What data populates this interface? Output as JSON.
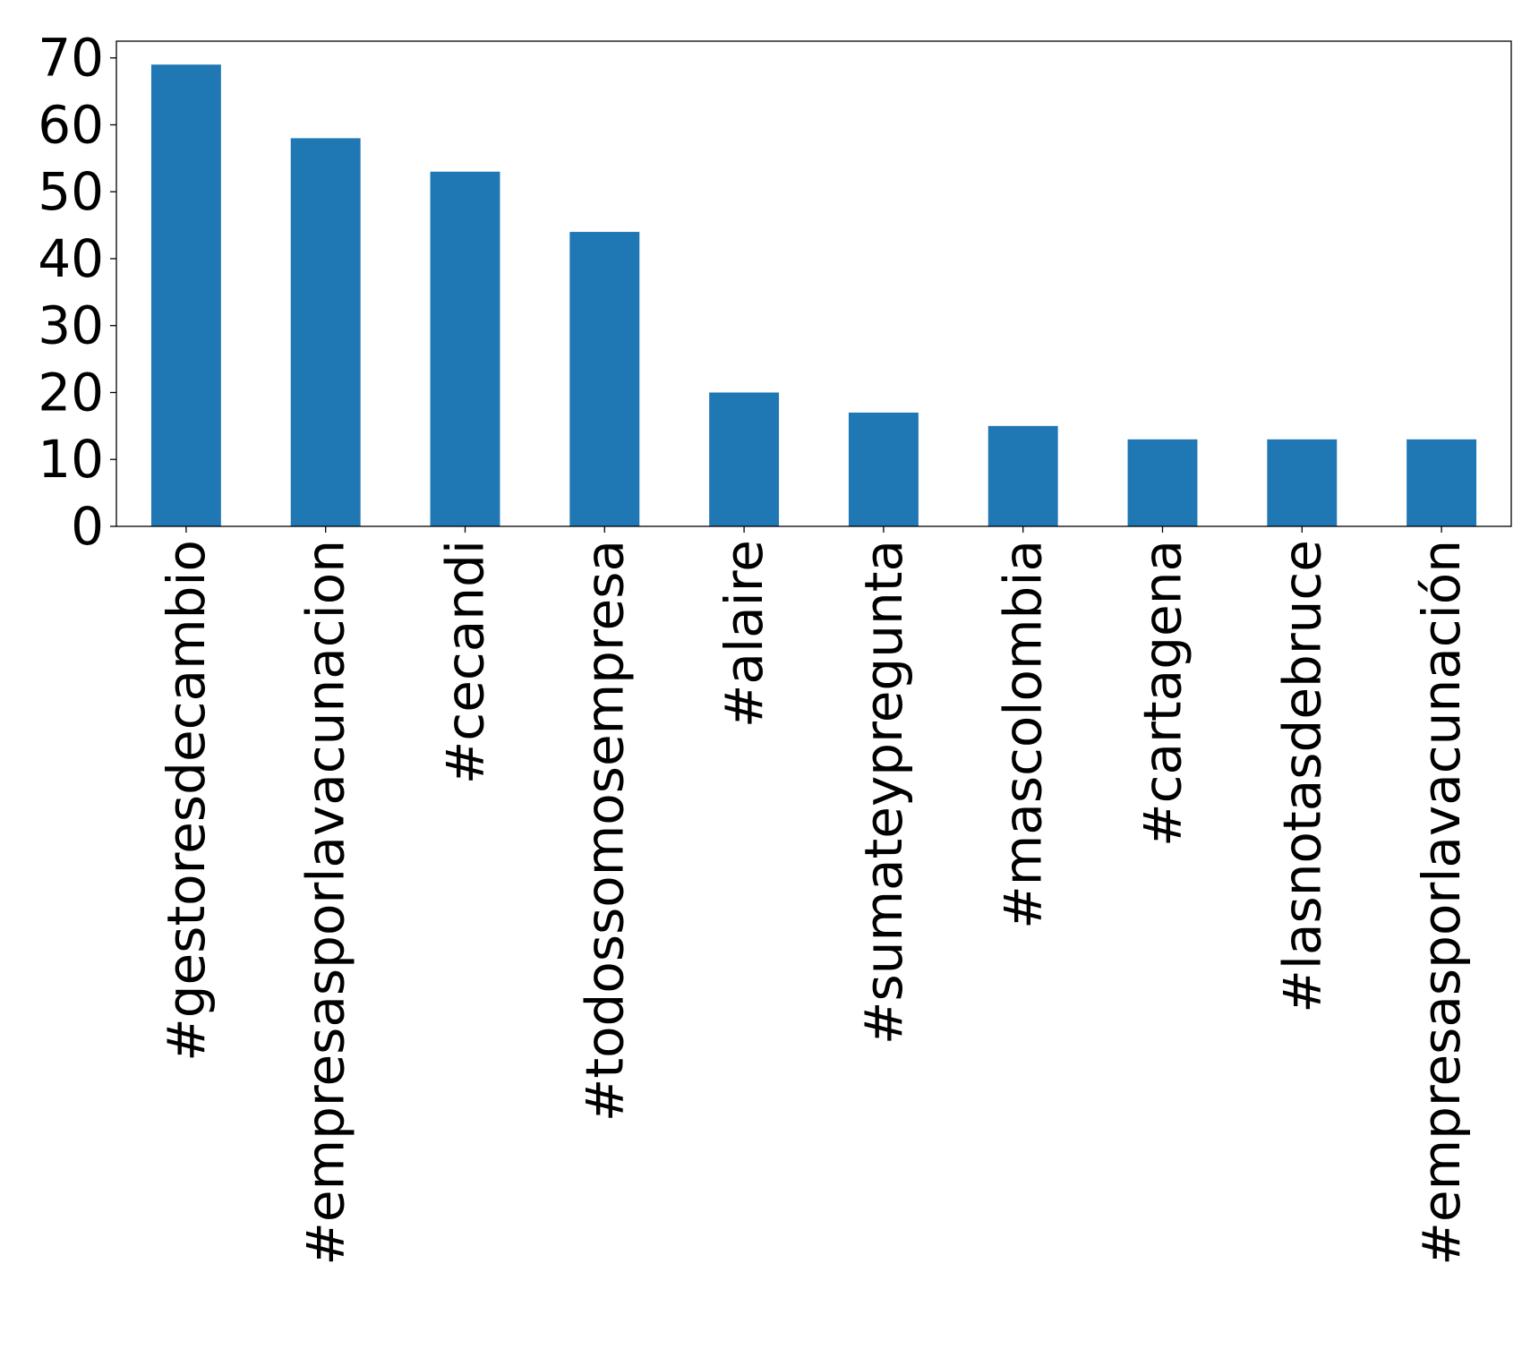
{
  "chart_data": {
    "type": "bar",
    "title": "",
    "xlabel": "",
    "ylabel": "",
    "categories": [
      "#gestoresdecambio",
      "#empresasporlavacunacion",
      "#cecandi",
      "#todossomosempresa",
      "#alaire",
      "#sumateypregunta",
      "#mascolombia",
      "#cartagena",
      "#lasnotasdebruce",
      "#empresasporlavacunación"
    ],
    "values": [
      69,
      58,
      53,
      44,
      20,
      17,
      15,
      13,
      13,
      13
    ],
    "ylim": [
      0,
      72.5
    ],
    "yticks": [
      0,
      10,
      20,
      30,
      40,
      50,
      60,
      70
    ],
    "grid": false,
    "legend": "none",
    "bar_color": "#1f77b4"
  }
}
